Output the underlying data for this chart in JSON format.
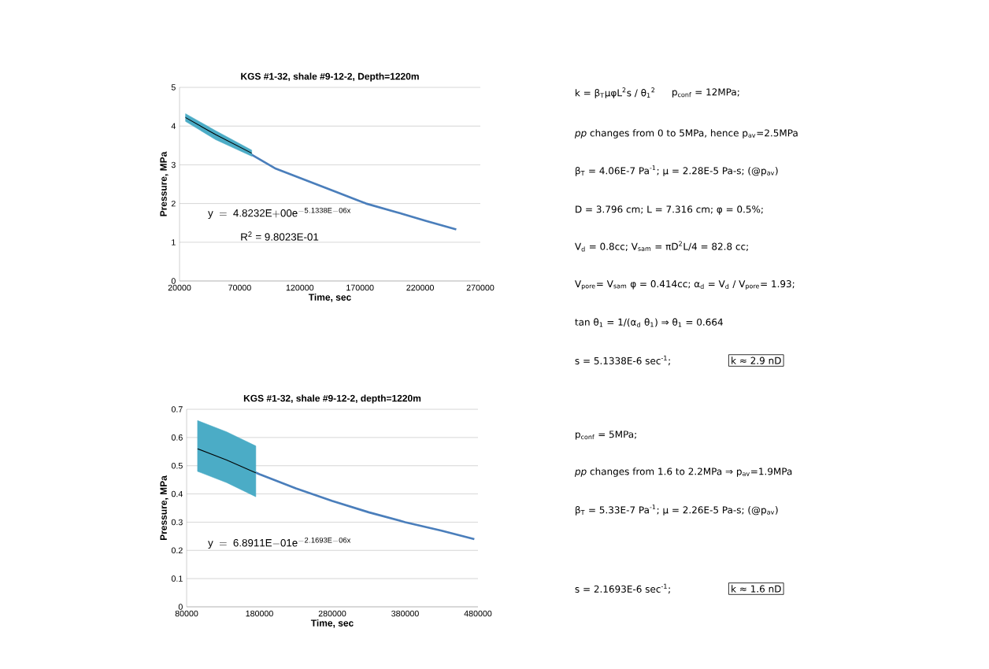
{
  "chart_data": [
    {
      "type": "line",
      "title": "KGS #1-32, shale #9-12-2, Depth=1220m",
      "xlabel": "Time, sec",
      "ylabel": "Pressure, MPa",
      "xlim": [
        20000,
        270000
      ],
      "ylim": [
        0,
        5
      ],
      "xticks": [
        20000,
        70000,
        120000,
        170000,
        220000,
        270000
      ],
      "yticks": [
        0,
        1,
        2,
        3,
        4,
        5
      ],
      "grid": "y",
      "series": [
        {
          "color": "#4a7ebb",
          "x": [
            25000,
            50000,
            75000,
            100000,
            125000,
            150000,
            175000,
            200000,
            225000,
            250000
          ],
          "values": [
            4.25,
            3.75,
            3.35,
            2.9,
            2.6,
            2.3,
            2.0,
            1.78,
            1.55,
            1.33
          ]
        },
        {
          "color": "#000000",
          "x": [
            25000,
            50000,
            80000
          ],
          "values": [
            4.22,
            3.78,
            3.3
          ],
          "lower": [
            4.12,
            3.65,
            3.22
          ],
          "upper": [
            4.32,
            3.88,
            3.38
          ]
        }
      ],
      "annotations": [
        "\\mathrm{y\\ =\\ 4.8232E{+}00e^{-5.1338E{-}06x}}",
        "R$^{2}$ = 9.8023E-01",
        "k = β$_{T}$μφL$^{2}$s / θ$_{1}$$^{2}$",
        "p$_{conf}$ = 12MPa;",
        "*pp* changes from 0 to 5MPa, hence p$_{av}$=2.5MPa",
        "β$_{T}$ = 4.06E-7 Pa$^{-1}$;  μ = 2.28E-5 Pa-s; (@p$_{av}$)",
        "D = 3.796 cm;  L = 7.316 cm;  φ = 0.5%;",
        "V$_{d}$ = 0.8cc;  V$_{sam}$ = πD$^{2}$L/4 = 82.8 cc;",
        "V$_{pore}$= V$_{sam}$ φ = 0.414cc;  α$_{d}$ = V$_{d}$ / V$_{pore}$= 1.93;",
        "tan θ$_{1}$ = 1/(α$_{d}$ θ$_{1}$)  ⇒  θ$_{1}$ = 0.664",
        "s = 5.1338E-6 sec$^{-1}$;",
        "k ≈ 2.9 nD"
      ]
    },
    {
      "type": "line",
      "title": "KGS #1-32, shale #9-12-2, depth=1220m",
      "xlabel": "Time, sec",
      "ylabel": "Pressure, MPa",
      "xlim": [
        80000,
        480000
      ],
      "ylim": [
        0,
        0.7
      ],
      "xticks": [
        80000,
        180000,
        280000,
        380000,
        480000
      ],
      "yticks": [
        0,
        0.1,
        0.2,
        0.3,
        0.4,
        0.5,
        0.6,
        0.7
      ],
      "grid": "y",
      "series": [
        {
          "color": "#4a7ebb",
          "x": [
            100000,
            140000,
            180000,
            230000,
            280000,
            330000,
            380000,
            430000,
            475000
          ],
          "values": [
            0.555,
            0.515,
            0.47,
            0.42,
            0.375,
            0.335,
            0.3,
            0.27,
            0.24
          ]
        },
        {
          "color": "#000000",
          "x": [
            95000,
            135000,
            175000
          ],
          "values": [
            0.56,
            0.52,
            0.475
          ],
          "lower": [
            0.48,
            0.44,
            0.39
          ],
          "upper": [
            0.66,
            0.62,
            0.57
          ]
        }
      ],
      "annotations": [
        "\\mathrm{y\\ =\\ 6.8911E{-}01e^{-2.1693E{-}06x}}",
        "p$_{conf}$ = 5MPa;",
        "*pp* changes from 1.6 to 2.2MPa ⇒ p$_{av}$=1.9MPa",
        "β$_{T}$ = 5.33E-7 Pa$^{-1}$;  μ = 2.26E-5 Pa-s; (@p$_{av}$)",
        "s = 2.1693E-6 sec$^{-1}$;",
        "k ≈ 1.6 nD"
      ]
    }
  ]
}
